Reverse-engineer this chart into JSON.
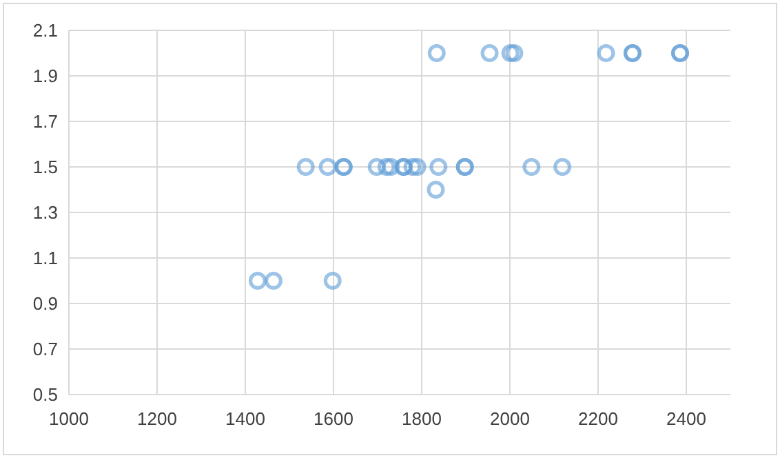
{
  "chart_data": {
    "type": "scatter",
    "x": [
      1834,
      1954,
      2001,
      2010,
      2218,
      2278,
      2278,
      2386,
      2386,
      1537,
      1587,
      1623,
      1623,
      1698,
      1720,
      1730,
      1759,
      1759,
      1779,
      1790,
      1838,
      1898,
      1898,
      2049,
      2119,
      1832,
      1428,
      1464,
      1598
    ],
    "values": [
      2,
      2,
      2,
      2,
      2,
      2,
      2,
      2,
      2,
      1.5,
      1.5,
      1.5,
      1.5,
      1.5,
      1.5,
      1.5,
      1.5,
      1.5,
      1.5,
      1.5,
      1.5,
      1.5,
      1.5,
      1.5,
      1.5,
      1.4,
      1,
      1,
      1
    ],
    "color": "#5b9bd5",
    "marker": "circle",
    "grid": true,
    "xlim": [
      1000,
      2500
    ],
    "xticks": [
      1000,
      1200,
      1400,
      1600,
      1800,
      2000,
      2200,
      2400
    ],
    "ylim": [
      0.5,
      2.1
    ],
    "yticks": [
      0.5,
      0.7,
      0.9,
      1.1,
      1.3,
      1.5,
      1.7,
      1.9,
      2.1
    ]
  }
}
